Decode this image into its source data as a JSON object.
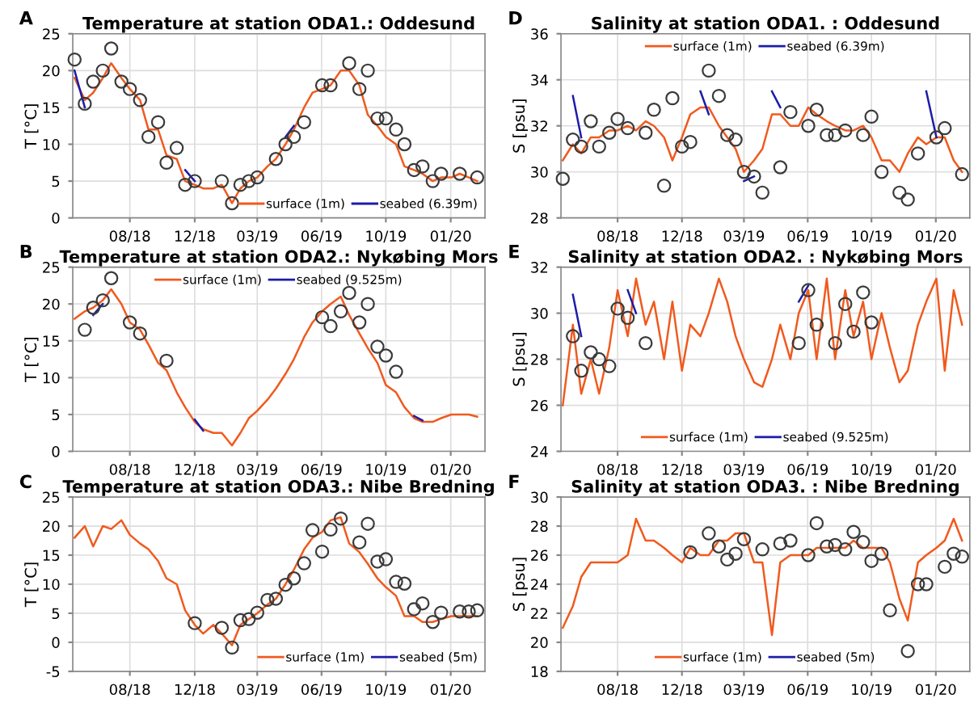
{
  "chart_data": [
    {
      "type": "line",
      "title": "Temperature at station ODA1.: Oddesund",
      "ylabel": "T [°C]",
      "annotations": [
        "A"
      ],
      "legend": "bottom right",
      "grid": true,
      "xlim": [
        "2018-05-12",
        "2020-03-28"
      ],
      "xticks": [
        {
          "value": "2018-08-15",
          "label": "08/18"
        },
        {
          "value": "2018-12-01",
          "label": "12/18"
        },
        {
          "value": "2019-03-15",
          "label": "03/19"
        },
        {
          "value": "2019-06-30",
          "label": "06/19"
        },
        {
          "value": "2019-10-15",
          "label": "10/19"
        },
        {
          "value": "2020-01-31",
          "label": "01/20"
        }
      ],
      "ylim": [
        0,
        25
      ],
      "yticks": [
        0,
        5,
        10,
        15,
        20,
        25
      ],
      "x": [
        "2018-05-15",
        "2018-06-01",
        "2018-06-15",
        "2018-07-01",
        "2018-07-15",
        "2018-08-01",
        "2018-08-15",
        "2018-09-01",
        "2018-09-15",
        "2018-10-01",
        "2018-10-15",
        "2018-11-01",
        "2018-11-15",
        "2018-12-01",
        "2018-12-15",
        "2019-01-01",
        "2019-01-15",
        "2019-02-01",
        "2019-02-15",
        "2019-03-01",
        "2019-03-15",
        "2019-04-01",
        "2019-04-15",
        "2019-05-01",
        "2019-05-15",
        "2019-06-01",
        "2019-06-15",
        "2019-07-01",
        "2019-07-15",
        "2019-08-01",
        "2019-08-15",
        "2019-09-01",
        "2019-09-15",
        "2019-10-01",
        "2019-10-15",
        "2019-11-01",
        "2019-11-15",
        "2019-12-01",
        "2019-12-15",
        "2020-01-01",
        "2020-01-15",
        "2020-02-01",
        "2020-02-15",
        "2020-03-01",
        "2020-03-15"
      ],
      "series": [
        {
          "name": "surface (1m)",
          "color": "#f05a1e",
          "values": [
            19,
            16,
            17,
            19,
            21,
            19,
            17.5,
            16,
            12,
            12,
            8.5,
            8,
            5,
            4.5,
            4,
            4,
            4.5,
            2,
            4,
            5,
            5.5,
            7,
            8,
            10,
            12,
            15,
            17,
            17.5,
            18,
            20,
            20,
            18,
            14,
            12.5,
            11,
            10,
            7,
            6.5,
            6,
            5,
            5.5,
            5.5,
            6,
            5.5,
            5
          ]
        },
        {
          "name": "seabed (6.39m)",
          "color": "#1c1ca8",
          "values": [
            20,
            15,
            null,
            null,
            null,
            null,
            null,
            null,
            null,
            null,
            null,
            null,
            6.5,
            5,
            null,
            null,
            null,
            null,
            null,
            null,
            null,
            null,
            null,
            11,
            12.5,
            null,
            null,
            null,
            null,
            null,
            null,
            null,
            null,
            null,
            null,
            null,
            null,
            null,
            null,
            null,
            null,
            null,
            null,
            null,
            null
          ]
        },
        {
          "type": "scatter",
          "marker": "circle",
          "color": "#3a3a3a",
          "values": [
            21.5,
            15.5,
            18.5,
            20,
            23,
            18.5,
            17.5,
            16,
            11,
            13,
            7.5,
            9.5,
            4.5,
            5,
            null,
            null,
            5,
            2,
            4.5,
            5,
            5.5,
            null,
            8,
            10,
            11,
            13,
            null,
            18,
            18,
            null,
            21,
            17.5,
            20,
            13.5,
            13.5,
            12,
            10,
            6.5,
            7,
            5,
            6,
            null,
            6,
            null,
            5.5
          ]
        }
      ]
    },
    {
      "type": "line",
      "title": "Salinity at station ODA1. : Oddesund",
      "ylabel": "S [psu]",
      "annotations": [
        "D"
      ],
      "legend": "top",
      "grid": true,
      "xlim": [
        "2018-05-12",
        "2020-03-28"
      ],
      "xticks": [
        {
          "value": "2018-08-15",
          "label": "08/18"
        },
        {
          "value": "2018-12-01",
          "label": "12/18"
        },
        {
          "value": "2019-03-15",
          "label": "03/19"
        },
        {
          "value": "2019-06-30",
          "label": "06/19"
        },
        {
          "value": "2019-10-15",
          "label": "10/19"
        },
        {
          "value": "2020-01-31",
          "label": "01/20"
        }
      ],
      "ylim": [
        28,
        36
      ],
      "yticks": [
        28,
        30,
        32,
        34,
        36
      ],
      "x": [
        "2018-05-15",
        "2018-06-01",
        "2018-06-15",
        "2018-07-01",
        "2018-07-15",
        "2018-08-01",
        "2018-08-15",
        "2018-09-01",
        "2018-09-15",
        "2018-10-01",
        "2018-10-15",
        "2018-11-01",
        "2018-11-15",
        "2018-12-01",
        "2018-12-15",
        "2019-01-01",
        "2019-01-15",
        "2019-02-01",
        "2019-02-15",
        "2019-03-01",
        "2019-03-15",
        "2019-04-01",
        "2019-04-15",
        "2019-05-01",
        "2019-05-15",
        "2019-06-01",
        "2019-06-15",
        "2019-07-01",
        "2019-07-15",
        "2019-08-01",
        "2019-08-15",
        "2019-09-01",
        "2019-09-15",
        "2019-10-01",
        "2019-10-15",
        "2019-11-01",
        "2019-11-15",
        "2019-12-01",
        "2019-12-15",
        "2020-01-01",
        "2020-01-15",
        "2020-02-01",
        "2020-02-15",
        "2020-03-01",
        "2020-03-15"
      ],
      "series": [
        {
          "name": "surface (1m)",
          "color": "#f05a1e",
          "values": [
            30.5,
            31.2,
            30.8,
            31.5,
            31.5,
            31.8,
            31.8,
            32,
            31.8,
            32.2,
            32,
            31.5,
            30.5,
            31.5,
            32.5,
            32.8,
            32.8,
            32,
            31.5,
            31,
            30,
            30.5,
            31,
            32.5,
            32.5,
            32,
            32,
            32.8,
            32.5,
            32.2,
            32,
            31.8,
            31.8,
            32,
            31.5,
            30.5,
            30.5,
            30,
            30.8,
            31.5,
            31.2,
            31.5,
            31.5,
            30.5,
            30
          ]
        },
        {
          "name": "seabed (6.39m)",
          "color": "#1c1ca8",
          "values": [
            null,
            33.3,
            31.5,
            null,
            null,
            null,
            null,
            null,
            null,
            null,
            null,
            null,
            null,
            null,
            null,
            33.5,
            32.5,
            null,
            null,
            null,
            29.6,
            29.8,
            null,
            33.5,
            32.8,
            null,
            null,
            null,
            null,
            null,
            null,
            null,
            null,
            null,
            null,
            null,
            null,
            null,
            null,
            null,
            33.5,
            31.5,
            null,
            null,
            null
          ]
        },
        {
          "type": "scatter",
          "marker": "circle",
          "color": "#3a3a3a",
          "values": [
            29.7,
            31.4,
            31.1,
            32.2,
            31.1,
            31.7,
            32.3,
            31.9,
            null,
            31.7,
            32.7,
            29.4,
            33.2,
            31.1,
            31.3,
            null,
            34.4,
            33.3,
            31.6,
            31.4,
            30,
            29.8,
            29.1,
            null,
            30.2,
            32.6,
            null,
            32,
            32.7,
            31.6,
            31.6,
            31.8,
            null,
            31.6,
            32.4,
            30,
            null,
            29.1,
            28.8,
            30.8,
            null,
            31.5,
            31.9,
            null,
            29.9
          ]
        }
      ]
    },
    {
      "type": "line",
      "title": "Temperature at station ODA2.: Nykøbing Mors",
      "ylabel": "T [°C]",
      "annotations": [
        "B"
      ],
      "legend": "top",
      "grid": true,
      "xlim": [
        "2018-05-12",
        "2020-03-28"
      ],
      "xticks": [
        {
          "value": "2018-08-15",
          "label": "08/18"
        },
        {
          "value": "2018-12-01",
          "label": "12/18"
        },
        {
          "value": "2019-03-15",
          "label": "03/19"
        },
        {
          "value": "2019-06-30",
          "label": "06/19"
        },
        {
          "value": "2019-10-15",
          "label": "10/19"
        },
        {
          "value": "2020-01-31",
          "label": "01/20"
        }
      ],
      "ylim": [
        0,
        25
      ],
      "yticks": [
        0,
        5,
        10,
        15,
        20,
        25
      ],
      "x": [
        "2018-05-15",
        "2018-06-01",
        "2018-06-15",
        "2018-07-01",
        "2018-07-15",
        "2018-08-01",
        "2018-08-15",
        "2018-09-01",
        "2018-09-15",
        "2018-10-01",
        "2018-10-15",
        "2018-11-01",
        "2018-11-15",
        "2018-12-01",
        "2018-12-15",
        "2019-01-01",
        "2019-01-15",
        "2019-02-01",
        "2019-02-15",
        "2019-03-01",
        "2019-03-15",
        "2019-04-01",
        "2019-04-15",
        "2019-05-01",
        "2019-05-15",
        "2019-06-01",
        "2019-06-15",
        "2019-07-01",
        "2019-07-15",
        "2019-08-01",
        "2019-08-15",
        "2019-09-01",
        "2019-09-15",
        "2019-10-01",
        "2019-10-15",
        "2019-11-01",
        "2019-11-15",
        "2019-12-01",
        "2019-12-15",
        "2020-01-01",
        "2020-01-15",
        "2020-02-01",
        "2020-02-15",
        "2020-03-01",
        "2020-03-15"
      ],
      "series": [
        {
          "name": "surface (1m)",
          "color": "#f05a1e",
          "values": [
            18,
            19,
            19.5,
            20.5,
            22,
            20,
            17.5,
            16.5,
            14.5,
            12,
            11,
            8,
            6,
            4,
            3,
            2.5,
            2.5,
            0.8,
            2.5,
            4.5,
            5.5,
            7,
            8.5,
            10.5,
            12.5,
            15.5,
            17.5,
            19,
            20,
            21,
            18.5,
            16,
            14,
            12,
            9,
            8,
            6,
            4.5,
            4,
            4,
            4.5,
            5,
            5,
            5,
            4.7
          ]
        },
        {
          "name": "seabed (9.525m)",
          "color": "#1c1ca8",
          "values": [
            null,
            null,
            18.5,
            20,
            null,
            null,
            null,
            null,
            null,
            null,
            null,
            null,
            null,
            4.3,
            2.8,
            null,
            null,
            null,
            null,
            null,
            null,
            null,
            null,
            null,
            null,
            null,
            null,
            null,
            null,
            null,
            null,
            null,
            null,
            null,
            null,
            null,
            null,
            4.8,
            4.2,
            null,
            null,
            null,
            null,
            null,
            null
          ]
        },
        {
          "type": "scatter",
          "marker": "circle",
          "color": "#3a3a3a",
          "values": [
            null,
            16.5,
            19.5,
            20.5,
            23.5,
            null,
            17.5,
            16,
            null,
            null,
            12.3,
            null,
            null,
            null,
            null,
            null,
            null,
            null,
            null,
            null,
            null,
            null,
            null,
            null,
            null,
            null,
            null,
            18.2,
            17,
            19,
            21.5,
            17.5,
            20,
            14.2,
            13,
            10.8,
            null,
            null,
            null,
            null,
            null,
            null,
            null,
            null,
            null
          ]
        }
      ]
    },
    {
      "type": "line",
      "title": "Salinity at station ODA2. : Nykøbing Mors",
      "ylabel": "S [psu]",
      "annotations": [
        "E"
      ],
      "legend": "bottom",
      "grid": true,
      "xlim": [
        "2018-05-12",
        "2020-03-28"
      ],
      "xticks": [
        {
          "value": "2018-08-15",
          "label": "08/18"
        },
        {
          "value": "2018-12-01",
          "label": "12/18"
        },
        {
          "value": "2019-03-15",
          "label": "03/19"
        },
        {
          "value": "2019-06-30",
          "label": "06/19"
        },
        {
          "value": "2019-10-15",
          "label": "10/19"
        },
        {
          "value": "2020-01-31",
          "label": "01/20"
        }
      ],
      "ylim": [
        24,
        32
      ],
      "yticks": [
        24,
        26,
        28,
        30,
        32
      ],
      "x": [
        "2018-05-15",
        "2018-06-01",
        "2018-06-15",
        "2018-07-01",
        "2018-07-15",
        "2018-08-01",
        "2018-08-15",
        "2018-09-01",
        "2018-09-15",
        "2018-10-01",
        "2018-10-15",
        "2018-11-01",
        "2018-11-15",
        "2018-12-01",
        "2018-12-15",
        "2019-01-01",
        "2019-01-15",
        "2019-02-01",
        "2019-02-15",
        "2019-03-01",
        "2019-03-15",
        "2019-04-01",
        "2019-04-15",
        "2019-05-01",
        "2019-05-15",
        "2019-06-01",
        "2019-06-15",
        "2019-07-01",
        "2019-07-15",
        "2019-08-01",
        "2019-08-15",
        "2019-09-01",
        "2019-09-15",
        "2019-10-01",
        "2019-10-15",
        "2019-11-01",
        "2019-11-15",
        "2019-12-01",
        "2019-12-15",
        "2020-01-01",
        "2020-01-15",
        "2020-02-01",
        "2020-02-15",
        "2020-03-01",
        "2020-03-15"
      ],
      "series": [
        {
          "name": "surface (1m)",
          "color": "#f05a1e",
          "values": [
            26,
            29.5,
            26.5,
            28,
            26.5,
            28.5,
            31,
            29,
            31.5,
            29.5,
            30.5,
            28,
            30.5,
            27.5,
            29.5,
            29,
            30,
            31.5,
            30.5,
            29,
            28,
            27,
            26.8,
            28,
            29.5,
            28,
            30,
            31,
            28,
            31.5,
            28,
            31,
            29,
            30.5,
            28,
            30,
            28.5,
            27,
            27.5,
            29.5,
            30.5,
            31.5,
            27.5,
            31,
            29.5
          ]
        },
        {
          "name": "seabed (9.525m)",
          "color": "#1c1ca8",
          "values": [
            null,
            30.8,
            29,
            null,
            null,
            null,
            null,
            31,
            30,
            null,
            null,
            null,
            null,
            null,
            null,
            null,
            null,
            null,
            null,
            null,
            null,
            null,
            null,
            null,
            null,
            null,
            30.5,
            31.2,
            null,
            null,
            null,
            null,
            null,
            null,
            null,
            null,
            null,
            null,
            null,
            null,
            null,
            null,
            null,
            null,
            null
          ]
        },
        {
          "type": "scatter",
          "marker": "circle",
          "color": "#3a3a3a",
          "values": [
            null,
            29,
            27.5,
            28.3,
            28,
            27.7,
            30.2,
            29.8,
            null,
            28.7,
            null,
            null,
            null,
            null,
            null,
            null,
            null,
            null,
            null,
            null,
            null,
            null,
            null,
            null,
            null,
            null,
            28.7,
            31,
            29.5,
            null,
            28.7,
            30.4,
            29.2,
            30.9,
            29.6,
            null,
            null,
            null,
            null,
            null,
            null,
            null,
            null,
            null,
            null
          ]
        }
      ]
    },
    {
      "type": "line",
      "title": "Temperature at station ODA3.: Nibe Bredning",
      "ylabel": "T [°C]",
      "annotations": [
        "C"
      ],
      "legend": "bottom right",
      "grid": true,
      "xlim": [
        "2018-05-12",
        "2020-03-28"
      ],
      "xticks": [
        {
          "value": "2018-08-15",
          "label": "08/18"
        },
        {
          "value": "2018-12-01",
          "label": "12/18"
        },
        {
          "value": "2019-03-15",
          "label": "03/19"
        },
        {
          "value": "2019-06-30",
          "label": "06/19"
        },
        {
          "value": "2019-10-15",
          "label": "10/19"
        },
        {
          "value": "2020-01-31",
          "label": "01/20"
        }
      ],
      "ylim": [
        -5,
        25
      ],
      "yticks": [
        -5,
        0,
        5,
        10,
        15,
        20,
        25
      ],
      "x": [
        "2018-05-15",
        "2018-06-01",
        "2018-06-15",
        "2018-07-01",
        "2018-07-15",
        "2018-08-01",
        "2018-08-15",
        "2018-09-01",
        "2018-09-15",
        "2018-10-01",
        "2018-10-15",
        "2018-11-01",
        "2018-11-15",
        "2018-12-01",
        "2018-12-15",
        "2019-01-01",
        "2019-01-15",
        "2019-02-01",
        "2019-02-15",
        "2019-03-01",
        "2019-03-15",
        "2019-04-01",
        "2019-04-15",
        "2019-05-01",
        "2019-05-15",
        "2019-06-01",
        "2019-06-15",
        "2019-07-01",
        "2019-07-15",
        "2019-08-01",
        "2019-08-15",
        "2019-09-01",
        "2019-09-15",
        "2019-10-01",
        "2019-10-15",
        "2019-11-01",
        "2019-11-15",
        "2019-12-01",
        "2019-12-15",
        "2020-01-01",
        "2020-01-15",
        "2020-02-01",
        "2020-02-15",
        "2020-03-01",
        "2020-03-15"
      ],
      "series": [
        {
          "name": "surface (1m)",
          "color": "#f05a1e",
          "values": [
            18,
            20,
            16.5,
            20,
            19.5,
            21,
            18.5,
            17,
            16,
            14,
            11,
            10,
            5.5,
            3,
            1.5,
            3,
            1.5,
            -0.5,
            3,
            4,
            5,
            6.5,
            7.5,
            10,
            12.5,
            16,
            18,
            19,
            21,
            21.5,
            17,
            15.5,
            13.5,
            11,
            9.5,
            8,
            4.5,
            4.5,
            3.5,
            3.5,
            4,
            4.5,
            4.5,
            4.5,
            4.5
          ]
        },
        {
          "name": "seabed (5m)",
          "color": "#1c1ca8",
          "values": [
            null,
            null,
            null,
            null,
            null,
            null,
            null,
            null,
            null,
            null,
            null,
            null,
            null,
            null,
            null,
            null,
            null,
            null,
            null,
            null,
            null,
            null,
            null,
            null,
            null,
            null,
            null,
            null,
            null,
            null,
            null,
            null,
            null,
            null,
            null,
            null,
            null,
            null,
            null,
            null,
            null,
            null,
            null,
            null,
            null
          ]
        },
        {
          "type": "scatter",
          "marker": "circle",
          "color": "#3a3a3a",
          "values": [
            null,
            null,
            null,
            null,
            null,
            null,
            null,
            null,
            null,
            null,
            null,
            null,
            null,
            3.3,
            null,
            null,
            2.5,
            -0.9,
            3.8,
            4,
            5.1,
            7.3,
            7.5,
            9.9,
            11,
            13.6,
            19.3,
            15.6,
            19.4,
            21.3,
            null,
            17.2,
            20.4,
            13.9,
            14.3,
            10.4,
            10.1,
            5.7,
            6.7,
            3.5,
            5.1,
            null,
            5.3,
            5.3,
            5.5
          ]
        }
      ]
    },
    {
      "type": "line",
      "title": "Salinity at station ODA3. : Nibe Bredning",
      "ylabel": "S [psu]",
      "annotations": [
        "F"
      ],
      "legend": "bottom",
      "grid": true,
      "xlim": [
        "2018-05-12",
        "2020-03-28"
      ],
      "xticks": [
        {
          "value": "2018-08-15",
          "label": "08/18"
        },
        {
          "value": "2018-12-01",
          "label": "12/18"
        },
        {
          "value": "2019-03-15",
          "label": "03/19"
        },
        {
          "value": "2019-06-30",
          "label": "06/19"
        },
        {
          "value": "2019-10-15",
          "label": "10/19"
        },
        {
          "value": "2020-01-31",
          "label": "01/20"
        }
      ],
      "ylim": [
        18,
        30
      ],
      "yticks": [
        18,
        20,
        22,
        24,
        26,
        28,
        30
      ],
      "x": [
        "2018-05-15",
        "2018-06-01",
        "2018-06-15",
        "2018-07-01",
        "2018-07-15",
        "2018-08-01",
        "2018-08-15",
        "2018-09-01",
        "2018-09-15",
        "2018-10-01",
        "2018-10-15",
        "2018-11-01",
        "2018-11-15",
        "2018-12-01",
        "2018-12-15",
        "2019-01-01",
        "2019-01-15",
        "2019-02-01",
        "2019-02-15",
        "2019-03-01",
        "2019-03-15",
        "2019-04-01",
        "2019-04-15",
        "2019-05-01",
        "2019-05-15",
        "2019-06-01",
        "2019-06-15",
        "2019-07-01",
        "2019-07-15",
        "2019-08-01",
        "2019-08-15",
        "2019-09-01",
        "2019-09-15",
        "2019-10-01",
        "2019-10-15",
        "2019-11-01",
        "2019-11-15",
        "2019-12-01",
        "2019-12-15",
        "2020-01-01",
        "2020-01-15",
        "2020-02-01",
        "2020-02-15",
        "2020-03-01",
        "2020-03-15"
      ],
      "series": [
        {
          "name": "surface (1m)",
          "color": "#f05a1e",
          "values": [
            21,
            22.5,
            24.5,
            25.5,
            25.5,
            25.5,
            25.5,
            26,
            28.5,
            27,
            27,
            26.5,
            26,
            25.5,
            26.5,
            26,
            26,
            27,
            27,
            27.5,
            27.5,
            25.5,
            25.5,
            20.5,
            25.5,
            26,
            26,
            26,
            26.5,
            26.5,
            26.5,
            26.5,
            27,
            26.5,
            26.5,
            26.5,
            25.5,
            23,
            21.5,
            25.5,
            26,
            26.5,
            27,
            28.5,
            27
          ]
        },
        {
          "name": "seabed (5m)",
          "color": "#1c1ca8",
          "values": [
            null,
            null,
            null,
            null,
            null,
            null,
            null,
            null,
            null,
            null,
            null,
            null,
            null,
            null,
            null,
            null,
            null,
            null,
            null,
            null,
            null,
            null,
            null,
            null,
            null,
            null,
            null,
            null,
            null,
            null,
            null,
            null,
            null,
            null,
            null,
            null,
            null,
            null,
            null,
            null,
            null,
            null,
            null,
            null,
            null
          ]
        },
        {
          "type": "scatter",
          "marker": "circle",
          "color": "#3a3a3a",
          "values": [
            null,
            null,
            null,
            null,
            null,
            null,
            null,
            null,
            null,
            null,
            null,
            null,
            null,
            null,
            26.2,
            null,
            27.5,
            26.6,
            25.7,
            26.1,
            27.1,
            null,
            26.4,
            null,
            26.8,
            27,
            null,
            26,
            28.2,
            26.6,
            26.7,
            26.4,
            27.6,
            26.9,
            25.6,
            26.1,
            22.2,
            null,
            19.4,
            24,
            24,
            null,
            25.2,
            26.1,
            25.9
          ]
        }
      ]
    }
  ]
}
